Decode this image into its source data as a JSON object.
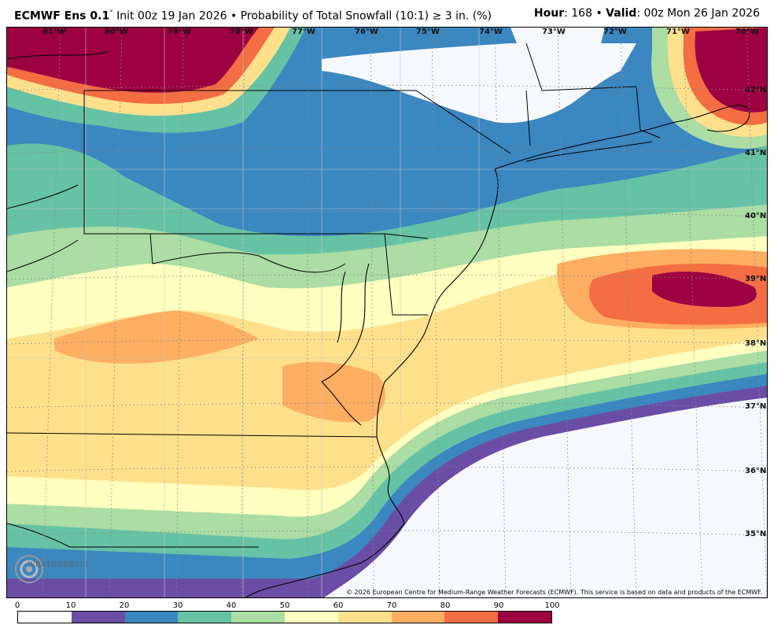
{
  "header": {
    "model": "ECMWF Ens 0.1",
    "degree": "°",
    "init": "Init 00z 19 Jan 2026",
    "bullet": "•",
    "product": "Probability of Total Snowfall (10:1)",
    "threshold": "≥ 3 in. (%)",
    "hour_label": "Hour",
    "hour_value": ": 168",
    "valid_label": "Valid",
    "valid_value": ": 00z Mon 26 Jan 2026"
  },
  "longitudes": [
    "81°W",
    "80°W",
    "79°W",
    "78°W",
    "77°W",
    "76°W",
    "75°W",
    "74°W",
    "73°W",
    "72°W",
    "71°W",
    "70°W"
  ],
  "latitudes": [
    "42°N",
    "41°N",
    "40°N",
    "39°N",
    "38°N",
    "37°N",
    "36°N",
    "35°N"
  ],
  "copyright": "© 2026 European Centre for Medium-Range Weather Forecasts (ECMWF). This service is based on data and products of the ECMWF.",
  "logo_text": "WEATHERBELL",
  "legend": {
    "ticks": [
      "0",
      "10",
      "20",
      "30",
      "40",
      "50",
      "60",
      "70",
      "80",
      "90",
      "100"
    ],
    "colors": [
      "#ffffff",
      "#6a4ea6",
      "#3b87c0",
      "#66c2a5",
      "#abdda4",
      "#ffffbf",
      "#fee08b",
      "#fdae61",
      "#f46d43",
      "#9e0142"
    ]
  }
}
